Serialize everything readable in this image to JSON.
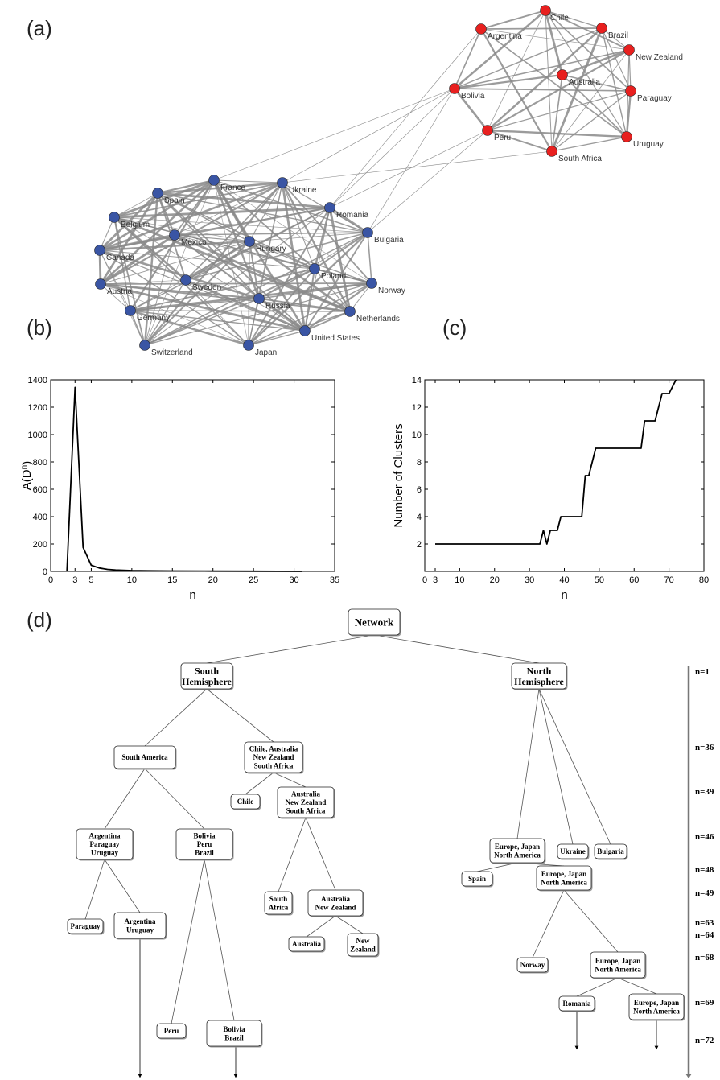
{
  "panels": {
    "a": "(a)",
    "b": "(b)",
    "c": "(c)",
    "d": "(d)"
  },
  "colors": {
    "south_node": "#e8201f",
    "north_node": "#3a55a4",
    "edge": "#8a8a8a",
    "line": "#000000"
  },
  "network": {
    "south_group": [
      "Chile",
      "Argentina",
      "Brazil",
      "New Zealand",
      "Australia",
      "Paraguay",
      "Bolivia",
      "Peru",
      "Uruguay",
      "South Africa"
    ],
    "north_group": [
      "France",
      "Ukraine",
      "Spain",
      "Romania",
      "Belgium",
      "Bulgaria",
      "Mexico",
      "Hungary",
      "Canada",
      "Poland",
      "Austria",
      "Sweden",
      "Norway",
      "Russia",
      "Germany",
      "Netherlands",
      "United States",
      "Switzerland",
      "Japan"
    ]
  },
  "chart_data": [
    {
      "panel": "(b)",
      "type": "line",
      "xlabel": "n",
      "ylabel": "A(D^n)",
      "xlim": [
        0,
        35
      ],
      "ylim": [
        0,
        1400
      ],
      "xticks": [
        0,
        3,
        5,
        10,
        15,
        20,
        25,
        30,
        35
      ],
      "yticks": [
        0,
        200,
        400,
        600,
        800,
        1000,
        1200,
        1400
      ],
      "x": [
        2,
        3,
        4,
        5,
        6,
        7,
        8,
        9,
        10,
        12,
        15,
        20,
        25,
        31
      ],
      "y": [
        0,
        1345,
        175,
        45,
        25,
        15,
        10,
        8,
        6,
        4,
        3,
        2,
        1,
        0
      ]
    },
    {
      "panel": "(c)",
      "type": "line",
      "xlabel": "n",
      "ylabel": "Number of Clusters",
      "xlim": [
        0,
        80
      ],
      "ylim": [
        0,
        14
      ],
      "xticks": [
        0,
        3,
        10,
        20,
        30,
        40,
        50,
        60,
        70,
        80
      ],
      "yticks": [
        2,
        4,
        6,
        8,
        10,
        12,
        14
      ],
      "x": [
        3,
        33,
        34,
        35,
        36,
        38,
        39,
        45,
        46,
        47,
        49,
        62,
        63,
        66,
        68,
        70,
        72
      ],
      "y": [
        2,
        2,
        3,
        2,
        3,
        3,
        4,
        4,
        7,
        7,
        9,
        9,
        11,
        11,
        13,
        13,
        14
      ]
    }
  ],
  "tree": {
    "root": "Network",
    "nodes": {
      "network": [
        "Network"
      ],
      "south": [
        "South",
        "Hemisphere"
      ],
      "north": [
        "North",
        "Hemisphere"
      ],
      "south_america": [
        "South America"
      ],
      "chile_group": [
        "Chile, Australia",
        "New Zealand",
        "South Africa"
      ],
      "chile": [
        "Chile"
      ],
      "aus_nz_sa": [
        "Australia",
        "New Zealand",
        "South Africa"
      ],
      "arg_par_uru": [
        "Argentina",
        "Paraguay",
        "Uruguay"
      ],
      "bol_peru_bra": [
        "Bolivia",
        "Peru",
        "Brazil"
      ],
      "paraguay": [
        "Paraguay"
      ],
      "arg_uru": [
        "Argentina",
        "Uruguay"
      ],
      "south_africa": [
        "South",
        "Africa"
      ],
      "aus_nz": [
        "Australia",
        "New Zealand"
      ],
      "australia": [
        "Australia"
      ],
      "new_zealand": [
        "New",
        "Zealand"
      ],
      "peru": [
        "Peru"
      ],
      "bol_bra": [
        "Bolivia",
        "Brazil"
      ],
      "eu_jp_na_1": [
        "Europe, Japan",
        "North America"
      ],
      "ukraine": [
        "Ukraine"
      ],
      "bulgaria": [
        "Bulgaria"
      ],
      "spain": [
        "Spain"
      ],
      "eu_jp_na_2": [
        "Europe, Japan",
        "North America"
      ],
      "norway": [
        "Norway"
      ],
      "eu_jp_na_3": [
        "Europe, Japan",
        "North America"
      ],
      "romania": [
        "Romania"
      ],
      "eu_jp_na_4": [
        "Europe, Japan",
        "North America"
      ]
    },
    "levels": [
      "n=1",
      "n=36",
      "n=39",
      "n=46",
      "n=48",
      "n=49",
      "n=63",
      "n=64",
      "n=68",
      "n=69",
      "n=72"
    ]
  }
}
